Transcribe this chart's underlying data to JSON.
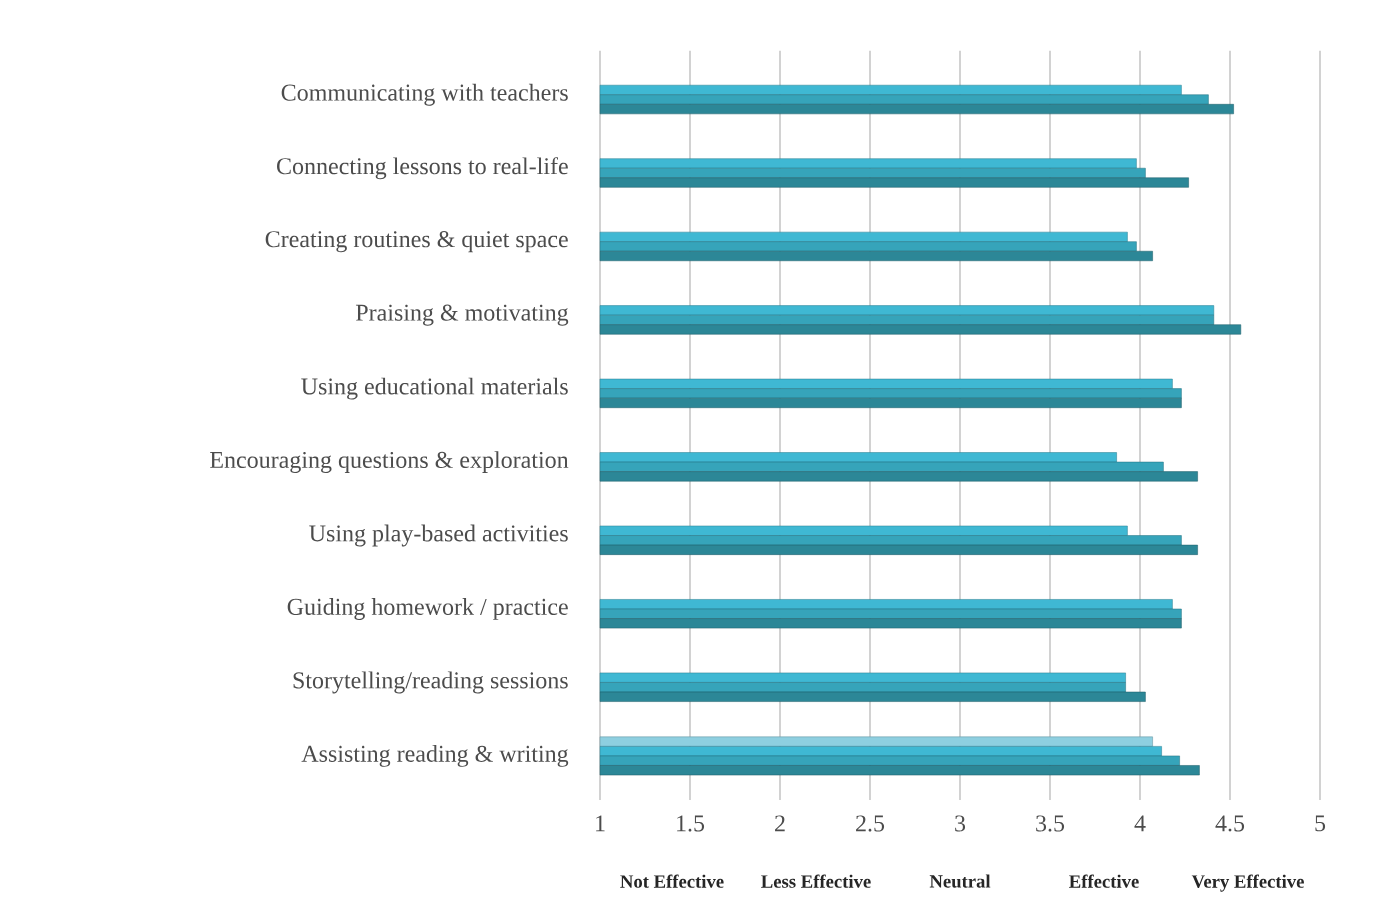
{
  "chart_data": {
    "type": "bar",
    "orientation": "horizontal",
    "categories": [
      "Communicating with teachers",
      "Connecting lessons to real-life",
      "Creating routines & quiet space",
      "Praising & motivating",
      "Using educational materials",
      "Encouraging questions & exploration",
      "Using play-based activities",
      "Guiding homework / practice",
      "Storytelling/reading sessions",
      "Assisting reading & writing"
    ],
    "series": [
      {
        "color": "#8ecfe0",
        "values": [
          null,
          null,
          null,
          null,
          null,
          null,
          null,
          null,
          null,
          4.07
        ]
      },
      {
        "color": "#3fb8d3",
        "values": [
          4.23,
          3.98,
          3.93,
          4.41,
          4.18,
          3.87,
          3.93,
          4.18,
          3.92,
          4.12
        ]
      },
      {
        "color": "#36a4ba",
        "values": [
          4.38,
          4.03,
          3.98,
          4.41,
          4.23,
          4.13,
          4.23,
          4.23,
          3.92,
          4.22
        ]
      },
      {
        "color": "#2c8797",
        "values": [
          4.52,
          4.27,
          4.07,
          4.56,
          4.23,
          4.32,
          4.32,
          4.23,
          4.03,
          4.33
        ]
      }
    ],
    "xlim": [
      1,
      5
    ],
    "xticks": [
      1,
      1.5,
      2,
      2.5,
      3,
      3.5,
      4,
      4.5,
      5
    ],
    "grid": "x",
    "annotations": [
      "Not Effective",
      "Less Effective",
      "Neutral",
      "Effective",
      "Very Effective"
    ]
  }
}
